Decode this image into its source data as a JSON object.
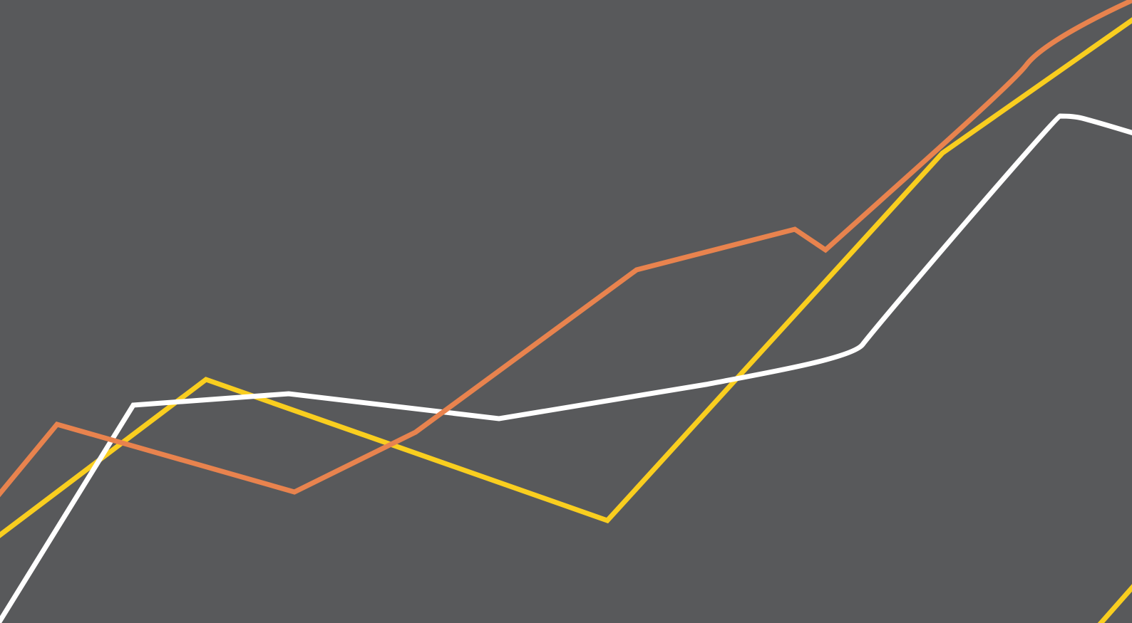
{
  "colors": {
    "background": "#58595b",
    "orange_line": "#e8834e",
    "yellow_line": "#f9ce1f",
    "white_line": "#ffffff"
  },
  "lines": [
    {
      "name": "orange-line",
      "color_key": "orange_line"
    },
    {
      "name": "yellow-line",
      "color_key": "yellow_line"
    },
    {
      "name": "white-line",
      "color_key": "white_line"
    }
  ]
}
